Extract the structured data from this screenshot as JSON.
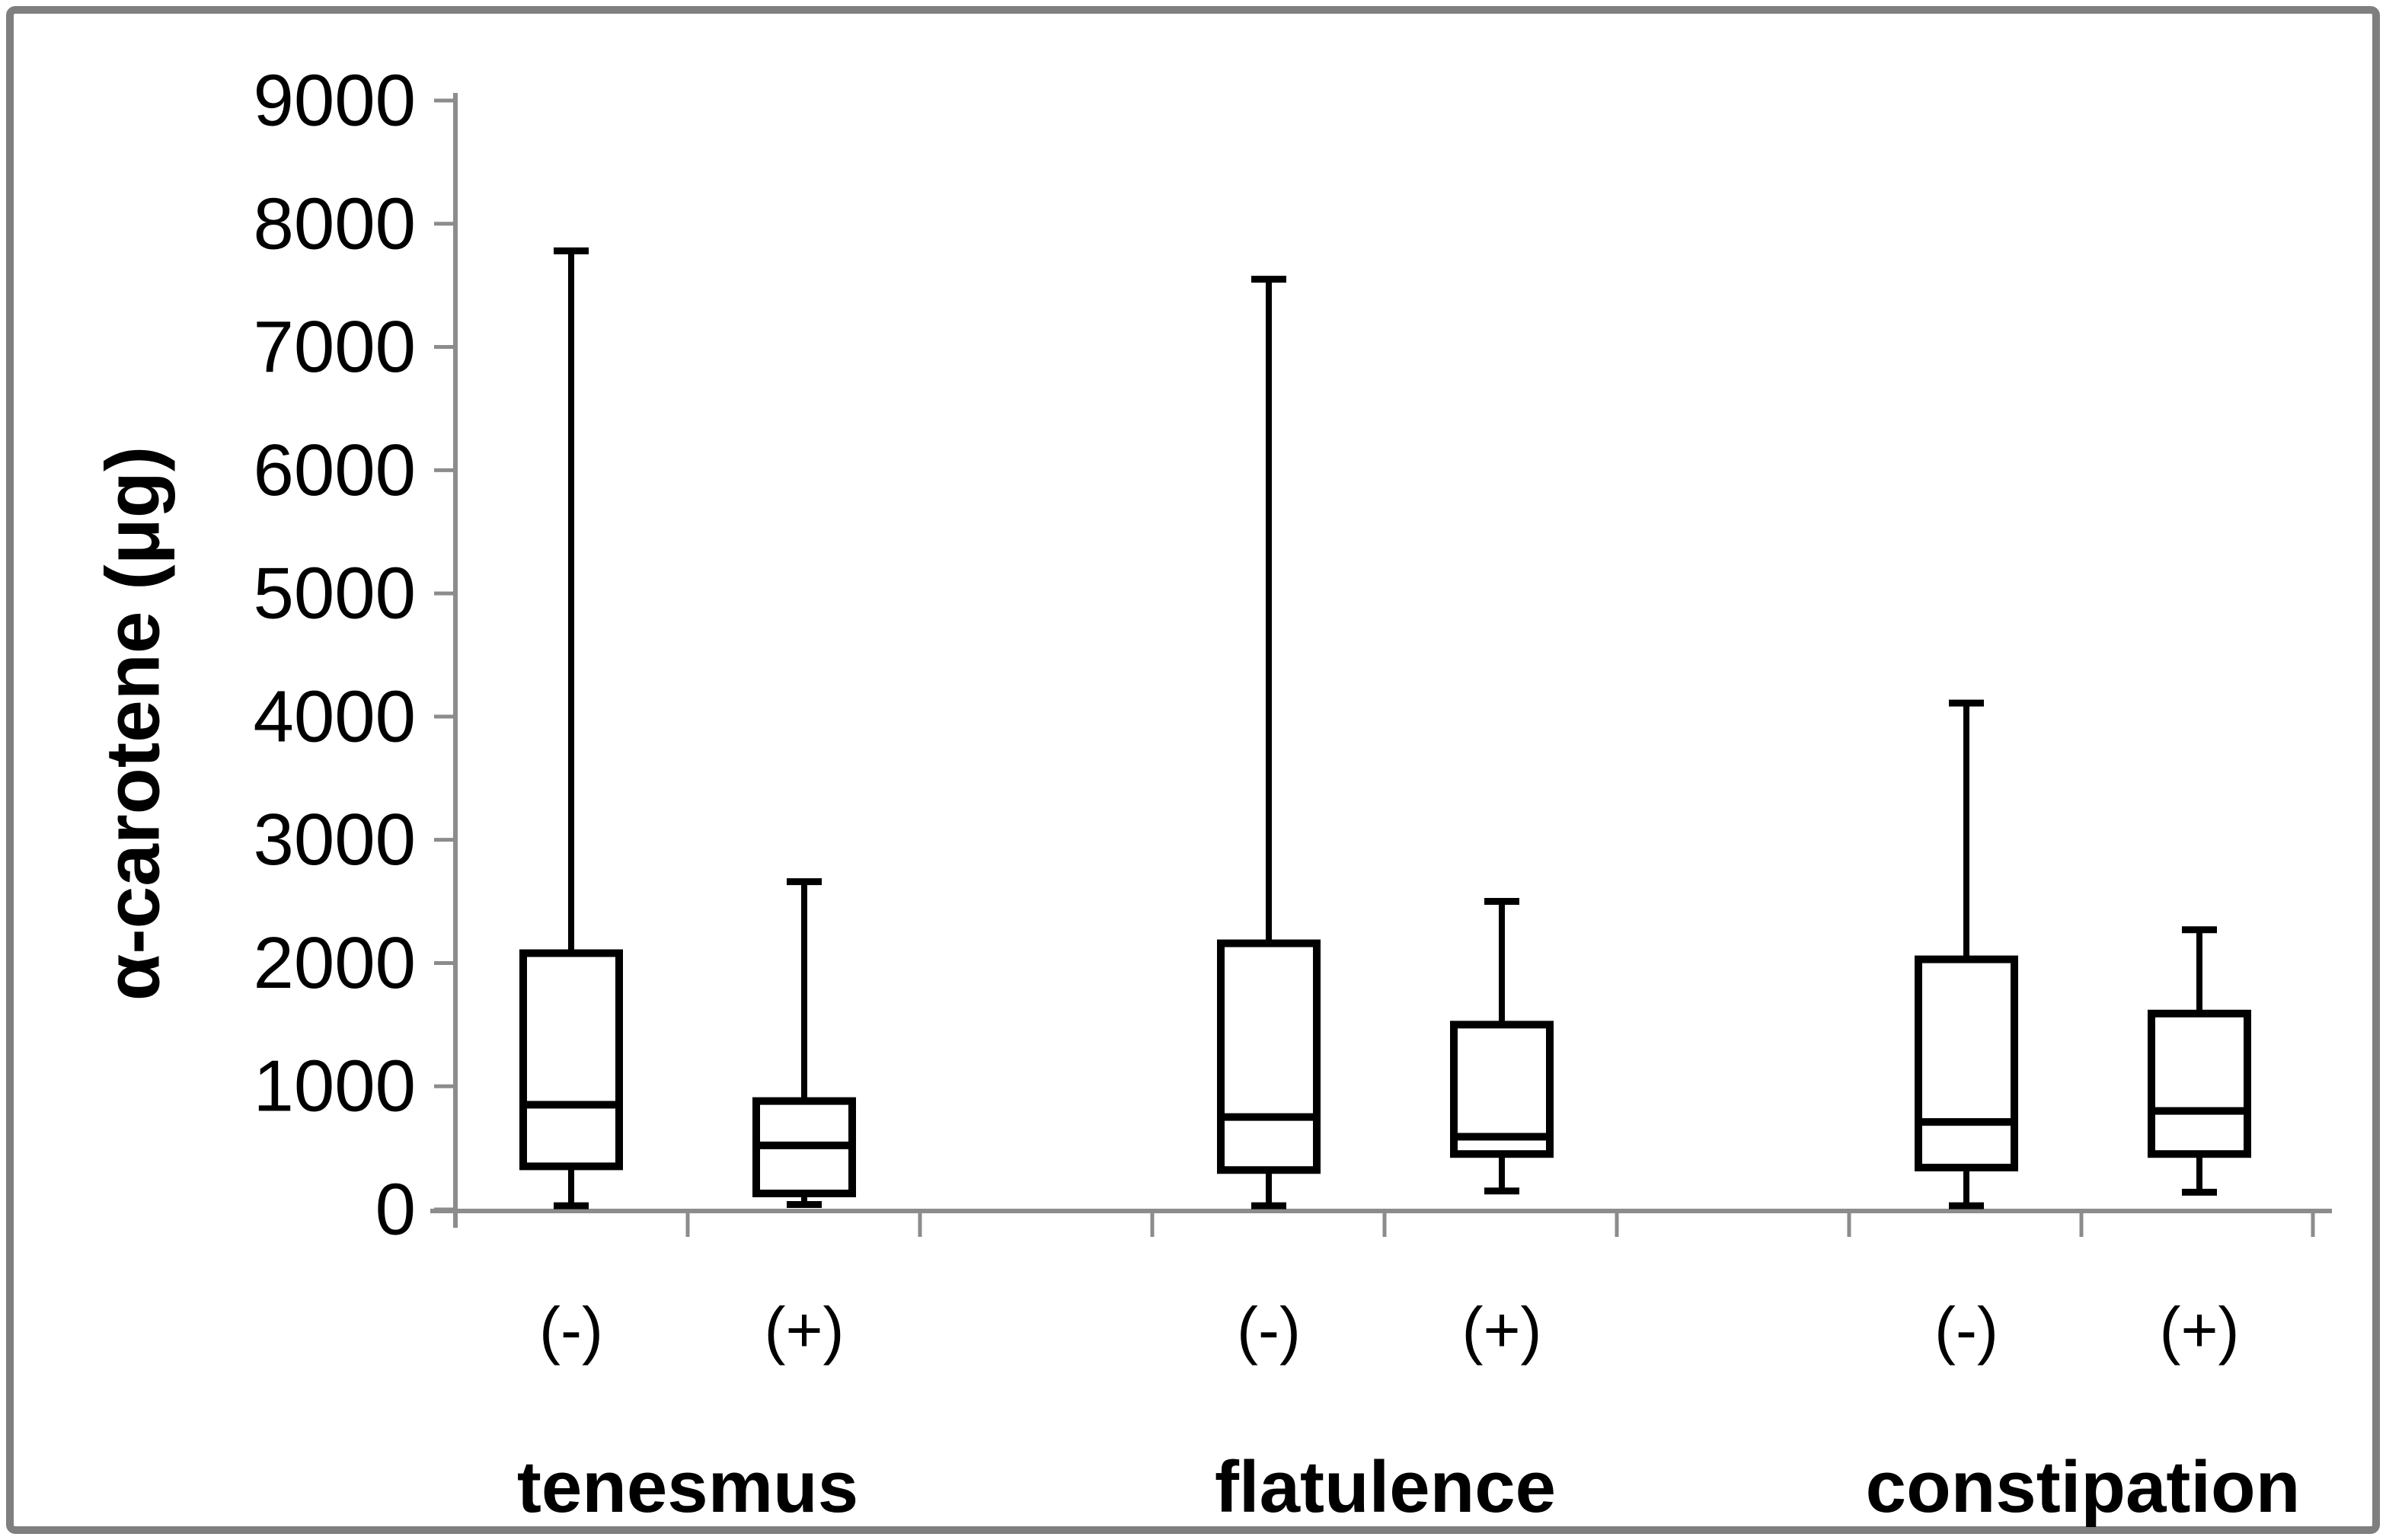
{
  "figure": {
    "background_color": "#ffffff",
    "border_color": "#7f7f7f"
  },
  "chart_data": {
    "type": "box",
    "title": "",
    "ylabel": "α-carotene (μg)",
    "xlabel": "",
    "grid": false,
    "legend_position": "none",
    "axis_color": "#8c8c8c",
    "box_color": "#000000",
    "box_fill": "#ffffff",
    "y_axis": {
      "min": 0,
      "max": 9000,
      "tick_step": 1000,
      "tick_labels": [
        "0",
        "1000",
        "2000",
        "3000",
        "4000",
        "5000",
        "6000",
        "7000",
        "8000",
        "9000"
      ]
    },
    "groups": [
      {
        "label": "tenesmus",
        "boxes": [
          {
            "label": "(-)",
            "whisker_min": 30,
            "q1": 350,
            "median": 850,
            "q3": 2080,
            "whisker_max": 7780
          },
          {
            "label": "(+)",
            "whisker_min": 40,
            "q1": 130,
            "median": 520,
            "q3": 880,
            "whisker_max": 2660
          }
        ]
      },
      {
        "label": "flatulence",
        "boxes": [
          {
            "label": "(-)",
            "whisker_min": 30,
            "q1": 320,
            "median": 750,
            "q3": 2160,
            "whisker_max": 7550
          },
          {
            "label": "(+)",
            "whisker_min": 150,
            "q1": 450,
            "median": 590,
            "q3": 1500,
            "whisker_max": 2500
          }
        ]
      },
      {
        "label": "constipation",
        "boxes": [
          {
            "label": "(-)",
            "whisker_min": 30,
            "q1": 340,
            "median": 710,
            "q3": 2030,
            "whisker_max": 4110
          },
          {
            "label": "(+)",
            "whisker_min": 140,
            "q1": 450,
            "median": 800,
            "q3": 1590,
            "whisker_max": 2270
          }
        ]
      }
    ]
  }
}
